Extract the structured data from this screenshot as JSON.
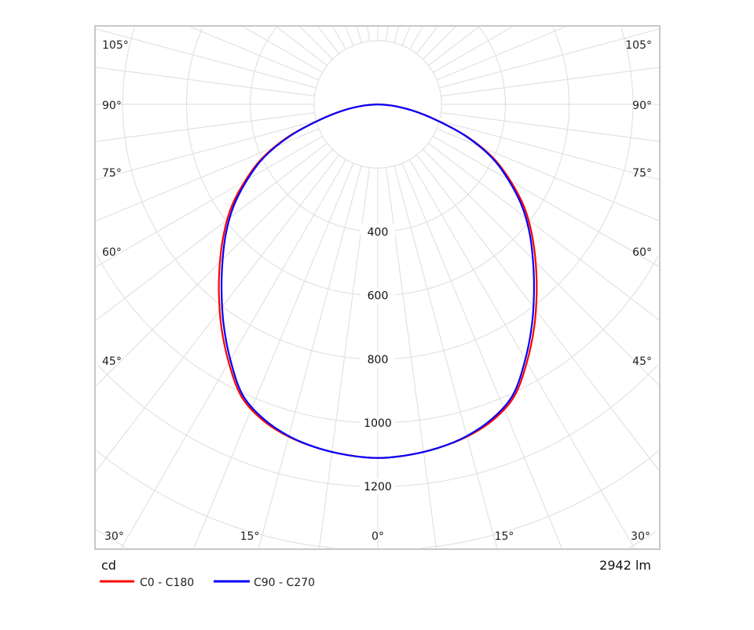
{
  "chart_data": {
    "type": "polar-line",
    "title": "",
    "unit_label": "cd",
    "flux_label": "2942 lm",
    "radial_ticks": [
      400,
      600,
      800,
      1000,
      1200
    ],
    "radial_grid_step": 200,
    "angle_labels_left": [
      "105°",
      "90°",
      "75°",
      "60°",
      "45°",
      "30°"
    ],
    "angle_labels_bottom": [
      "15°",
      "0°",
      "15°"
    ],
    "angle_labels_right": [
      "30°",
      "45°",
      "60°",
      "75°",
      "90°",
      "105°"
    ],
    "angles": [
      0,
      5,
      10,
      15,
      20,
      25,
      30,
      35,
      40,
      45,
      50,
      55,
      60,
      65,
      70,
      75,
      80,
      85,
      90
    ],
    "series": [
      {
        "name": "C0 - C180",
        "color": "#ff0000",
        "values": [
          1110,
          1105,
          1095,
          1080,
          1055,
          1012,
          935,
          855,
          775,
          700,
          630,
          560,
          480,
          400,
          300,
          190,
          110,
          45,
          0
        ]
      },
      {
        "name": "C90 - C270",
        "color": "#0000ff",
        "values": [
          1110,
          1105,
          1095,
          1078,
          1050,
          1005,
          925,
          843,
          762,
          688,
          620,
          550,
          472,
          394,
          296,
          188,
          108,
          44,
          0
        ]
      }
    ]
  }
}
